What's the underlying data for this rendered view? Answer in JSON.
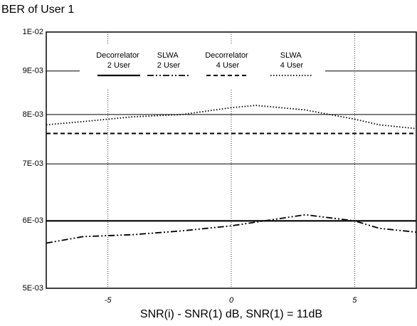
{
  "chart_data": {
    "type": "line",
    "title": "BER of User 1",
    "x_label": "SNR(i) - SNR(1) dB, SNR(1) = 11dB",
    "x": [
      -7.5,
      -6,
      -4,
      -2,
      0,
      1,
      3,
      5,
      6,
      7.5
    ],
    "xlim": [
      -7.5,
      7.5
    ],
    "xticks": [
      -5,
      0,
      5
    ],
    "ylim": [
      0.005,
      0.01
    ],
    "y_scale": "log",
    "yticks": [
      {
        "value": 0.005,
        "label": "5E-03"
      },
      {
        "value": 0.006,
        "label": "6E-03"
      },
      {
        "value": 0.007,
        "label": "7E-03"
      },
      {
        "value": 0.008,
        "label": "8E-03"
      },
      {
        "value": 0.009,
        "label": "9E-03"
      },
      {
        "value": 0.01,
        "label": "1E-02"
      }
    ],
    "grid": true,
    "legend": "top",
    "series": [
      {
        "name": "Decorrelator 2 User",
        "color": "#000000",
        "dash": "solid",
        "values": [
          0.006,
          0.006,
          0.006,
          0.006,
          0.006,
          0.006,
          0.006,
          0.006,
          0.006,
          0.006
        ]
      },
      {
        "name": "SLWA 2 User",
        "color": "#000000",
        "dash": "dashdot",
        "values": [
          0.00565,
          0.00575,
          0.00578,
          0.00584,
          0.00592,
          0.00598,
          0.0061,
          0.006,
          0.00588,
          0.00582
        ]
      },
      {
        "name": "Decorrelator 4 User",
        "color": "#000000",
        "dash": "dashed",
        "values": [
          0.0076,
          0.0076,
          0.0076,
          0.0076,
          0.0076,
          0.0076,
          0.0076,
          0.0076,
          0.0076,
          0.0076
        ]
      },
      {
        "name": "SLWA 4 User",
        "color": "#000000",
        "dash": "dotted",
        "values": [
          0.00778,
          0.00785,
          0.00795,
          0.008,
          0.00815,
          0.0082,
          0.0081,
          0.0079,
          0.00778,
          0.0077
        ]
      }
    ]
  }
}
